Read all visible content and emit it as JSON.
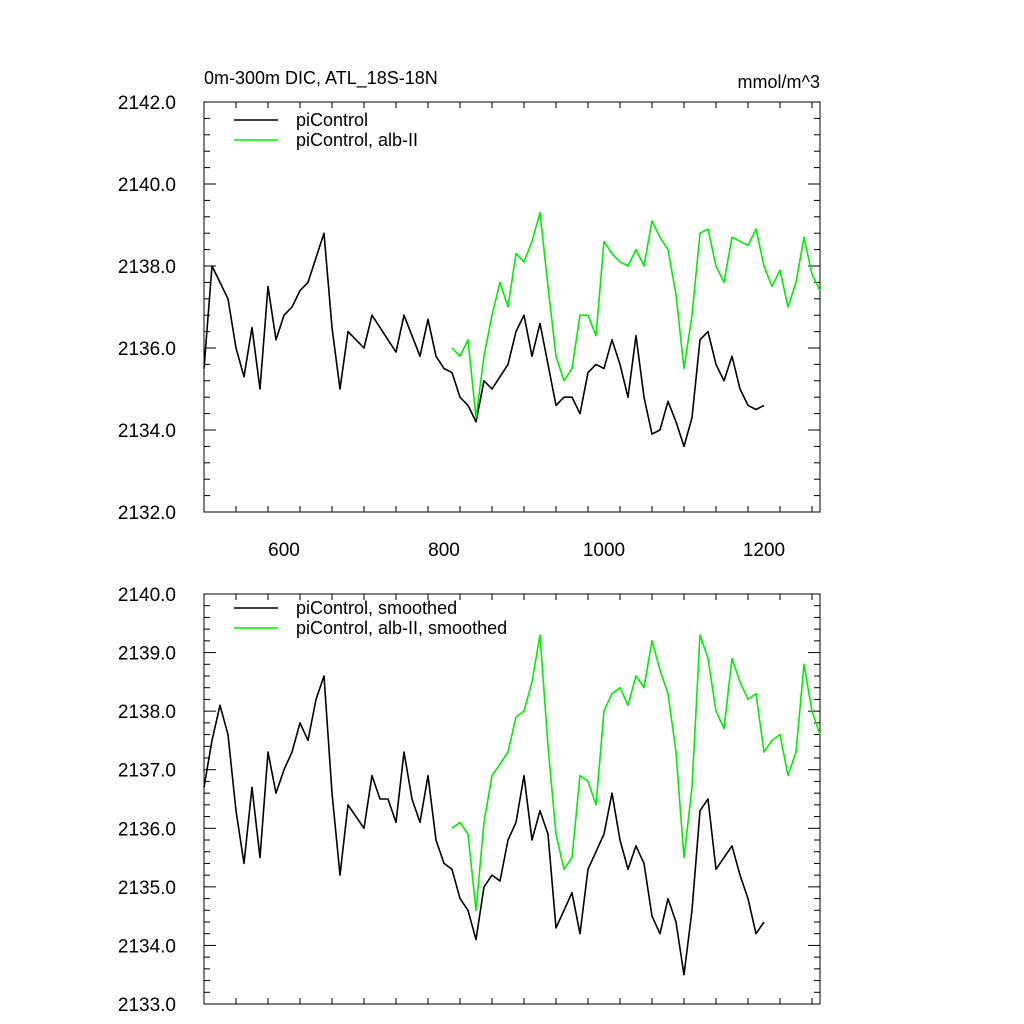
{
  "chart_data": [
    {
      "type": "line",
      "title": "0m-300m DIC, ATL_18S-18N",
      "units_label": "mmol/m^3",
      "xlim": [
        500,
        1270
      ],
      "ylim": [
        2132.0,
        2142.0
      ],
      "x_ticks": [
        600,
        800,
        1000,
        1200
      ],
      "x_tick_labels": [
        "600",
        "800",
        "1000",
        "1200"
      ],
      "y_ticks": [
        2132.0,
        2134.0,
        2136.0,
        2138.0,
        2140.0,
        2142.0
      ],
      "y_tick_labels": [
        "2132.0",
        "2134.0",
        "2136.0",
        "2138.0",
        "2140.0",
        "2142.0"
      ],
      "grid": false,
      "legend_position": "top-left",
      "series": [
        {
          "name": "piControl",
          "color": "#000000",
          "x": [
            500,
            510,
            520,
            530,
            540,
            550,
            560,
            570,
            580,
            590,
            600,
            610,
            620,
            630,
            640,
            650,
            660,
            670,
            680,
            690,
            700,
            710,
            720,
            730,
            740,
            750,
            760,
            770,
            780,
            790,
            800,
            810,
            820,
            830,
            840,
            850,
            860,
            870,
            880,
            890,
            900,
            910,
            920,
            930,
            940,
            950,
            960,
            970,
            980,
            990,
            1000,
            1010,
            1020,
            1030,
            1040,
            1050,
            1060,
            1070,
            1080,
            1090,
            1100,
            1110,
            1120,
            1130,
            1140,
            1150,
            1160,
            1170,
            1180,
            1190,
            1200
          ],
          "y": [
            2135.5,
            2138.0,
            2137.6,
            2137.2,
            2136.0,
            2135.3,
            2136.5,
            2135.0,
            2137.5,
            2136.2,
            2136.8,
            2137.0,
            2137.4,
            2137.6,
            2138.2,
            2138.8,
            2136.5,
            2135.0,
            2136.4,
            2136.2,
            2136.0,
            2136.8,
            2136.5,
            2136.2,
            2135.9,
            2136.8,
            2136.3,
            2135.8,
            2136.7,
            2135.8,
            2135.5,
            2135.4,
            2134.8,
            2134.6,
            2134.2,
            2135.2,
            2135.0,
            2135.3,
            2135.6,
            2136.4,
            2136.8,
            2135.8,
            2136.6,
            2135.6,
            2134.6,
            2134.8,
            2134.8,
            2134.4,
            2135.4,
            2135.6,
            2135.5,
            2136.2,
            2135.6,
            2134.8,
            2136.3,
            2134.8,
            2133.9,
            2134.0,
            2134.7,
            2134.2,
            2133.6,
            2134.3,
            2136.2,
            2136.4,
            2135.6,
            2135.2,
            2135.8,
            2135.0,
            2134.6,
            2134.5,
            2134.6
          ]
        },
        {
          "name": "piControl, alb-II",
          "color": "#00ee00",
          "x": [
            810,
            820,
            830,
            840,
            850,
            860,
            870,
            880,
            890,
            900,
            910,
            920,
            930,
            940,
            950,
            960,
            970,
            980,
            990,
            1000,
            1010,
            1020,
            1030,
            1040,
            1050,
            1060,
            1070,
            1080,
            1090,
            1100,
            1110,
            1120,
            1130,
            1140,
            1150,
            1160,
            1170,
            1180,
            1190,
            1200,
            1210,
            1220,
            1230,
            1240,
            1250,
            1260,
            1270
          ],
          "y": [
            2136.0,
            2135.8,
            2136.2,
            2134.3,
            2135.8,
            2136.8,
            2137.6,
            2137.0,
            2138.3,
            2138.1,
            2138.6,
            2139.3,
            2137.5,
            2135.8,
            2135.2,
            2135.5,
            2136.8,
            2136.8,
            2136.3,
            2138.6,
            2138.3,
            2138.1,
            2138.0,
            2138.4,
            2138.0,
            2139.1,
            2138.7,
            2138.4,
            2137.3,
            2135.5,
            2136.8,
            2138.8,
            2138.9,
            2138.0,
            2137.6,
            2138.7,
            2138.6,
            2138.5,
            2138.9,
            2138.0,
            2137.5,
            2137.9,
            2137.0,
            2137.6,
            2138.7,
            2137.8,
            2137.4
          ]
        }
      ]
    },
    {
      "type": "line",
      "xlim": [
        500,
        1270
      ],
      "ylim": [
        2133.0,
        2140.0
      ],
      "x_ticks": [
        600,
        800,
        1000,
        1200
      ],
      "y_ticks": [
        2133.0,
        2134.0,
        2135.0,
        2136.0,
        2137.0,
        2138.0,
        2139.0,
        2140.0
      ],
      "y_tick_labels": [
        "2133.0",
        "2134.0",
        "2135.0",
        "2136.0",
        "2137.0",
        "2138.0",
        "2139.0",
        "2140.0"
      ],
      "grid": false,
      "legend_position": "top-left",
      "series": [
        {
          "name": "piControl, smoothed",
          "color": "#000000",
          "x": [
            500,
            510,
            520,
            530,
            540,
            550,
            560,
            570,
            580,
            590,
            600,
            610,
            620,
            630,
            640,
            650,
            660,
            670,
            680,
            690,
            700,
            710,
            720,
            730,
            740,
            750,
            760,
            770,
            780,
            790,
            800,
            810,
            820,
            830,
            840,
            850,
            860,
            870,
            880,
            890,
            900,
            910,
            920,
            930,
            940,
            950,
            960,
            970,
            980,
            990,
            1000,
            1010,
            1020,
            1030,
            1040,
            1050,
            1060,
            1070,
            1080,
            1090,
            1100,
            1110,
            1120,
            1130,
            1140,
            1150,
            1160,
            1170,
            1180,
            1190,
            1200
          ],
          "y": [
            2136.7,
            2137.5,
            2138.1,
            2137.6,
            2136.3,
            2135.4,
            2136.7,
            2135.5,
            2137.3,
            2136.6,
            2137.0,
            2137.3,
            2137.8,
            2137.5,
            2138.2,
            2138.6,
            2136.6,
            2135.2,
            2136.4,
            2136.2,
            2136.0,
            2136.9,
            2136.5,
            2136.5,
            2136.1,
            2137.3,
            2136.5,
            2136.1,
            2136.9,
            2135.8,
            2135.4,
            2135.3,
            2134.8,
            2134.6,
            2134.1,
            2135.0,
            2135.2,
            2135.1,
            2135.8,
            2136.1,
            2136.9,
            2135.8,
            2136.3,
            2135.9,
            2134.3,
            2134.6,
            2134.9,
            2134.2,
            2135.3,
            2135.6,
            2135.9,
            2136.6,
            2135.8,
            2135.3,
            2135.7,
            2135.4,
            2134.5,
            2134.2,
            2134.8,
            2134.4,
            2133.5,
            2134.6,
            2136.3,
            2136.5,
            2135.3,
            2135.5,
            2135.7,
            2135.2,
            2134.8,
            2134.2,
            2134.4
          ]
        },
        {
          "name": "piControl, alb-II, smoothed",
          "color": "#00ee00",
          "x": [
            810,
            820,
            830,
            840,
            850,
            860,
            870,
            880,
            890,
            900,
            910,
            920,
            930,
            940,
            950,
            960,
            970,
            980,
            990,
            1000,
            1010,
            1020,
            1030,
            1040,
            1050,
            1060,
            1070,
            1080,
            1090,
            1100,
            1110,
            1120,
            1130,
            1140,
            1150,
            1160,
            1170,
            1180,
            1190,
            1200,
            1210,
            1220,
            1230,
            1240,
            1250,
            1260,
            1270
          ],
          "y": [
            2136.0,
            2136.1,
            2135.9,
            2134.6,
            2136.1,
            2136.9,
            2137.1,
            2137.3,
            2137.9,
            2138.0,
            2138.5,
            2139.3,
            2137.4,
            2135.9,
            2135.3,
            2135.5,
            2136.9,
            2136.8,
            2136.4,
            2138.0,
            2138.3,
            2138.4,
            2138.1,
            2138.6,
            2138.4,
            2139.2,
            2138.7,
            2138.3,
            2137.3,
            2135.5,
            2136.7,
            2139.3,
            2138.9,
            2138.0,
            2137.7,
            2138.9,
            2138.5,
            2138.2,
            2138.3,
            2137.3,
            2137.5,
            2137.6,
            2136.9,
            2137.3,
            2138.8,
            2138.0,
            2137.6
          ]
        }
      ]
    }
  ]
}
